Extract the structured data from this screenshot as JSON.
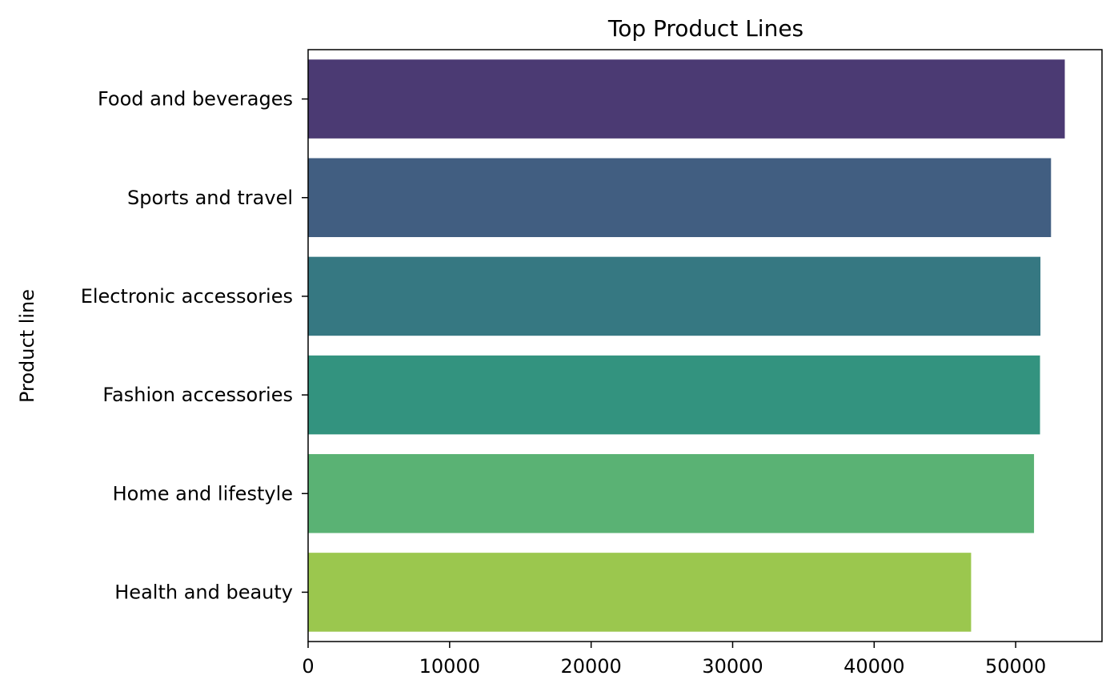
{
  "chart_data": {
    "type": "bar",
    "orientation": "horizontal",
    "title": "Top Product Lines",
    "xlabel": "",
    "ylabel": "Product line",
    "categories": [
      "Food and beverages",
      "Sports and travel",
      "Electronic accessories",
      "Fashion accessories",
      "Home and lifestyle",
      "Health and beauty"
    ],
    "values": [
      53471,
      52498,
      51750,
      51720,
      51297,
      46851
    ],
    "colors": [
      "#4b3a73",
      "#415e81",
      "#367882",
      "#33937f",
      "#5ab274",
      "#9bc74e"
    ],
    "xlim": [
      0,
      56100
    ],
    "xticks": [
      0,
      10000,
      20000,
      30000,
      40000,
      50000
    ],
    "grid": false,
    "legend": "none"
  }
}
